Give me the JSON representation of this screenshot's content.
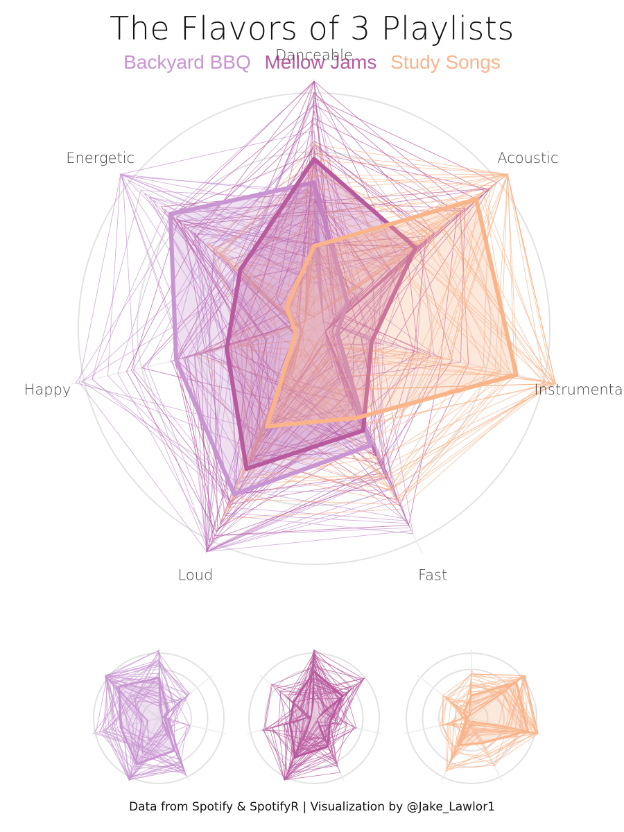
{
  "header": {
    "title": "The Flavors of 3 Playlists"
  },
  "caption": "Data from Spotify & SpotifyR | Visualization by @Jake_Lawlor1",
  "chart_data": {
    "type": "radar",
    "title": "The Flavors of 3 Playlists",
    "axes": [
      "Danceable",
      "Acoustic",
      "Instrumental",
      "Fast",
      "Loud",
      "Happy",
      "Energetic"
    ],
    "rlim": [
      0,
      1
    ],
    "grid": true,
    "legend_position": "top",
    "series": [
      {
        "name": "Backyard BBQ",
        "color": "#c895d2",
        "average": [
          0.62,
          0.18,
          0.1,
          0.55,
          0.78,
          0.6,
          0.78
        ]
      },
      {
        "name": "Mellow Jams",
        "color": "#b85a9e",
        "average": [
          0.72,
          0.55,
          0.25,
          0.48,
          0.66,
          0.38,
          0.4
        ]
      },
      {
        "name": "Study Songs",
        "color": "#f9b48a",
        "average": [
          0.35,
          0.88,
          0.88,
          0.42,
          0.46,
          0.08,
          0.15
        ]
      }
    ]
  }
}
